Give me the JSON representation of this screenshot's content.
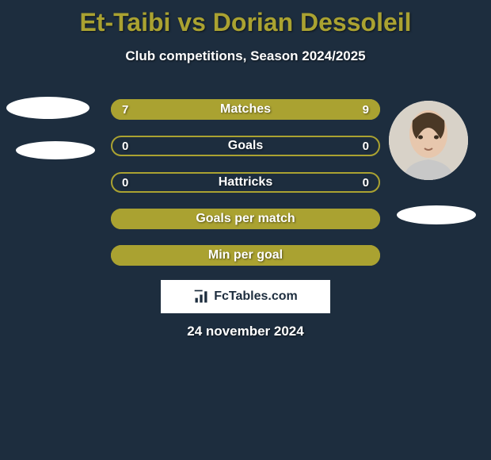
{
  "title": "Et-Taibi vs Dorian Dessoleil",
  "title_color": "#aaa231",
  "subtitle": "Club competitions, Season 2024/2025",
  "date": "24 november 2024",
  "logo_text": "FcTables.com",
  "background_color": "#1d2d3e",
  "bar_colors": {
    "fill": "#aaa231",
    "track": "#1d2d3e",
    "border": "#aaa231"
  },
  "bars": [
    {
      "label": "Matches",
      "left": "7",
      "right": "9",
      "left_pct": 41,
      "right_pct": 59,
      "show_values": true
    },
    {
      "label": "Goals",
      "left": "0",
      "right": "0",
      "left_pct": 0,
      "right_pct": 0,
      "show_values": true
    },
    {
      "label": "Hattricks",
      "left": "0",
      "right": "0",
      "left_pct": 0,
      "right_pct": 0,
      "show_values": true
    },
    {
      "label": "Goals per match",
      "left": "",
      "right": "",
      "left_pct": 100,
      "right_pct": 0,
      "show_values": false
    },
    {
      "label": "Min per goal",
      "left": "",
      "right": "",
      "left_pct": 100,
      "right_pct": 0,
      "show_values": false
    }
  ],
  "players": {
    "left": {
      "name": "Et-Taibi"
    },
    "right": {
      "name": "Dorian Dessoleil"
    }
  }
}
